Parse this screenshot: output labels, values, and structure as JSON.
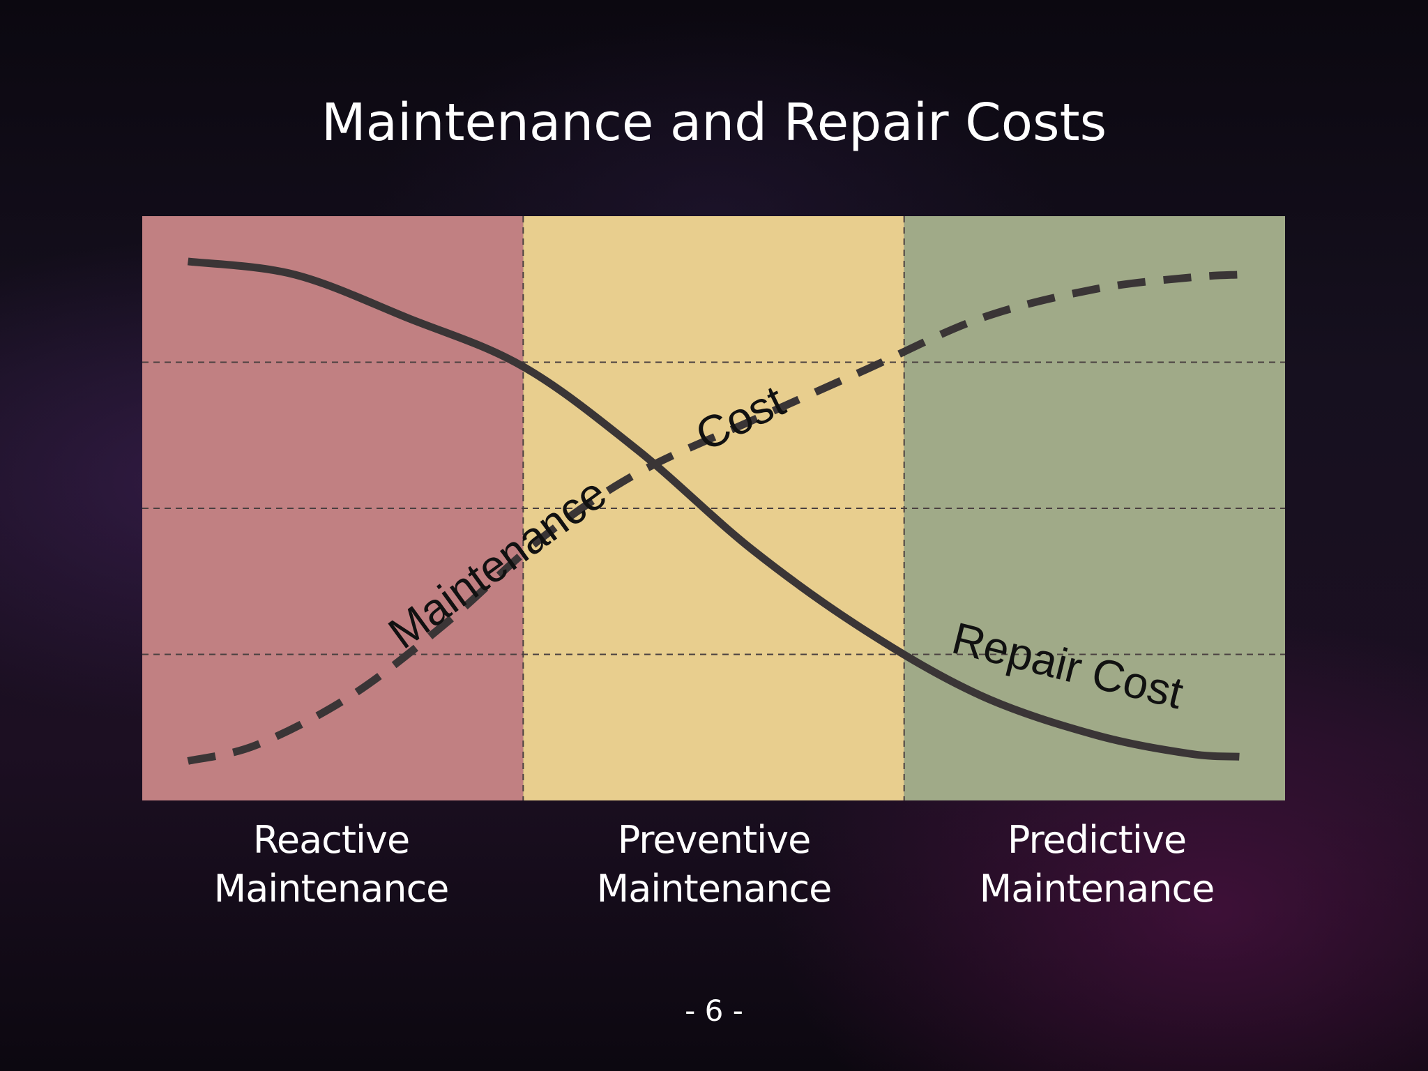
{
  "slide": {
    "title": "Maintenance and Repair Costs",
    "page_number": "- 6 -"
  },
  "chart_data": {
    "type": "line",
    "title": "",
    "xlabel": "",
    "ylabel": "",
    "xlim": [
      0,
      3
    ],
    "ylim": [
      0,
      4
    ],
    "grid": {
      "horizontal": true,
      "vertical": true,
      "style": "dashed"
    },
    "categories": [
      "Reactive\nMaintenance",
      "Preventive\nMaintenance",
      "Predictive\nMaintenance"
    ],
    "category_labels": [
      {
        "line1": "Reactive",
        "line2": "Maintenance"
      },
      {
        "line1": "Preventive",
        "line2": "Maintenance"
      },
      {
        "line1": "Predictive",
        "line2": "Maintenance"
      }
    ],
    "band_colors": [
      "#c18082",
      "#e8ce8e",
      "#a0aa88"
    ],
    "series": [
      {
        "name": "Repair Cost",
        "style": "solid",
        "x": [
          0.12,
          0.4,
          0.7,
          1.0,
          1.3,
          1.6,
          1.9,
          2.2,
          2.5,
          2.75,
          2.88
        ],
        "y": [
          3.69,
          3.6,
          3.3,
          2.97,
          2.4,
          1.72,
          1.16,
          0.72,
          0.45,
          0.32,
          0.3
        ]
      },
      {
        "name": "Maintenance Cost",
        "style": "dashed",
        "x": [
          0.12,
          0.3,
          0.55,
          0.8,
          1.05,
          1.3,
          1.6,
          1.9,
          2.2,
          2.5,
          2.75,
          2.88
        ],
        "y": [
          0.27,
          0.38,
          0.72,
          1.22,
          1.8,
          2.24,
          2.6,
          2.95,
          3.3,
          3.5,
          3.58,
          3.6
        ]
      }
    ],
    "annotations": [
      {
        "text": "Maintenance",
        "series": "Maintenance Cost"
      },
      {
        "text": "Cost",
        "series": "Maintenance Cost"
      },
      {
        "text": "Repair Cost",
        "series": "Repair Cost"
      }
    ]
  }
}
